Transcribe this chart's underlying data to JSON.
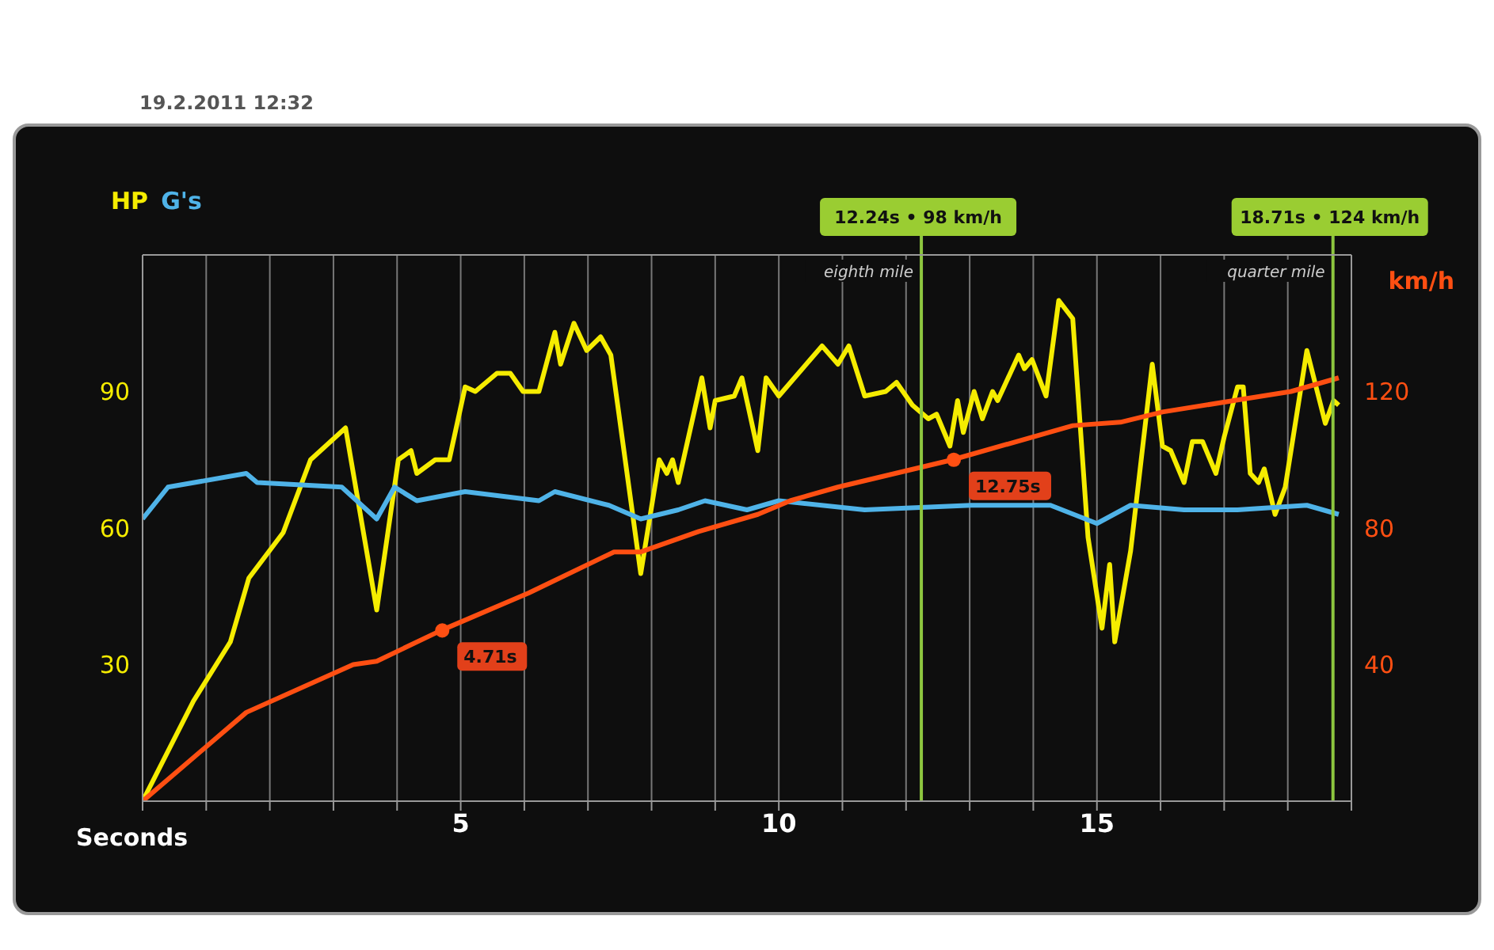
{
  "chart_data": {
    "type": "line",
    "subtitle": "19.2.2011 12:32",
    "xlabel": "Seconds",
    "y2label": "km/h",
    "xlim": [
      0,
      19
    ],
    "xticks": [
      {
        "value": 0,
        "label": null
      },
      {
        "value": 1,
        "label": null
      },
      {
        "value": 2,
        "label": null
      },
      {
        "value": 3,
        "label": null
      },
      {
        "value": 4,
        "label": null
      },
      5,
      {
        "value": 6,
        "label": null
      },
      {
        "value": 7,
        "label": null
      },
      {
        "value": 8,
        "label": null
      },
      {
        "value": 9,
        "label": null
      },
      10,
      {
        "value": 11,
        "label": null
      },
      {
        "value": 12,
        "label": null
      },
      {
        "value": 13,
        "label": null
      },
      {
        "value": 14,
        "label": null
      },
      15,
      {
        "value": 16,
        "label": null
      },
      {
        "value": 17,
        "label": null
      },
      {
        "value": 18,
        "label": null
      },
      {
        "value": 19,
        "label": null
      }
    ],
    "ylim": [
      0,
      120
    ],
    "yticks": [
      30,
      60,
      90
    ],
    "y2lim": [
      0,
      160
    ],
    "y2ticks": [
      40,
      80,
      120
    ],
    "grid": true,
    "legend": "top left",
    "marker": "none",
    "line_style": "solid",
    "series": [
      {
        "name": "HP",
        "color": "#f5ec00",
        "x": [
          0,
          0.8,
          1.38,
          1.67,
          2.21,
          2.64,
          3.19,
          3.68,
          4.02,
          4.22,
          4.31,
          4.6,
          4.82,
          5.07,
          5.23,
          5.57,
          5.78,
          5.98,
          6.23,
          6.48,
          6.57,
          6.78,
          6.98,
          7.2,
          7.36,
          7.83,
          8.12,
          8.24,
          8.33,
          8.42,
          8.79,
          8.92,
          9.0,
          9.3,
          9.42,
          9.67,
          9.8,
          10.0,
          10.68,
          10.93,
          11.1,
          11.35,
          11.68,
          11.85,
          12.1,
          12.35,
          12.48,
          12.69,
          12.81,
          12.9,
          13.07,
          13.2,
          13.36,
          13.44,
          13.77,
          13.86,
          13.98,
          14.2,
          14.4,
          14.62,
          14.86,
          15.08,
          15.2,
          15.28,
          15.53,
          15.87,
          16.03,
          16.16,
          16.37,
          16.5,
          16.66,
          16.87,
          17.0,
          17.21,
          17.3,
          17.41,
          17.54,
          17.63,
          17.8,
          17.96,
          18.3,
          18.59,
          18.72,
          18.8
        ],
        "values": [
          0,
          22,
          35,
          49,
          59,
          75,
          82,
          42,
          75,
          77,
          72,
          75,
          75,
          91,
          90,
          94,
          94,
          90,
          90,
          103,
          96,
          105,
          99,
          102,
          98,
          50,
          75,
          72,
          75,
          70,
          93,
          82,
          88,
          89,
          93,
          77,
          93,
          89,
          100,
          96,
          100,
          89,
          90,
          92,
          87,
          84,
          85,
          78,
          88,
          81,
          90,
          84,
          90,
          88,
          98,
          95,
          97,
          89,
          110,
          106,
          58,
          38,
          52,
          35,
          55,
          96,
          78,
          77,
          70,
          79,
          79,
          72,
          80,
          91,
          91,
          72,
          70,
          73,
          63,
          69,
          99,
          83,
          88,
          87
        ]
      },
      {
        "name": "G's",
        "color": "#4fb3e8",
        "x": [
          0,
          0.4,
          1.63,
          1.8,
          3.13,
          3.68,
          3.96,
          4.31,
          5.07,
          6.23,
          6.48,
          7.33,
          7.83,
          8.42,
          8.84,
          9.5,
          10.0,
          11.35,
          13.02,
          14.27,
          15.0,
          15.53,
          16.37,
          17.21,
          18.3,
          18.8
        ],
        "values": [
          62,
          69,
          72,
          70,
          69,
          62,
          69,
          66,
          68,
          66,
          68,
          65,
          62,
          64,
          66,
          64,
          66,
          64,
          65,
          65,
          61,
          65,
          64,
          64,
          65,
          63
        ]
      },
      {
        "color": "#ff4f12",
        "axis": "y2",
        "x": [
          0,
          1.63,
          3.31,
          3.68,
          4.69,
          6.07,
          7.41,
          7.83,
          8.74,
          9.67,
          10.18,
          10.93,
          12.73,
          14.62,
          15.37,
          16.03,
          18.05,
          18.8
        ],
        "values": [
          0,
          26,
          40,
          41,
          50,
          61,
          73,
          73,
          79,
          84,
          88,
          92,
          100,
          110,
          111,
          114,
          120,
          124
        ]
      },
      {
        "type": "scatter",
        "color": "#ff4f12",
        "axis": "y2",
        "marker": "circle",
        "x": [
          4.71,
          12.75
        ],
        "values": [
          50,
          100
        ]
      }
    ],
    "ref_lines": [
      {
        "axis": "x",
        "value": 12.24,
        "label": "eighth mile",
        "color": "#8dc63f"
      },
      {
        "axis": "x",
        "value": 18.71,
        "label": "quarter mile",
        "color": "#8dc63f"
      }
    ],
    "annotations": [
      "4.71s",
      "12.75s",
      "12.24s • 98 km/h",
      "18.71s • 124 km/h"
    ]
  }
}
